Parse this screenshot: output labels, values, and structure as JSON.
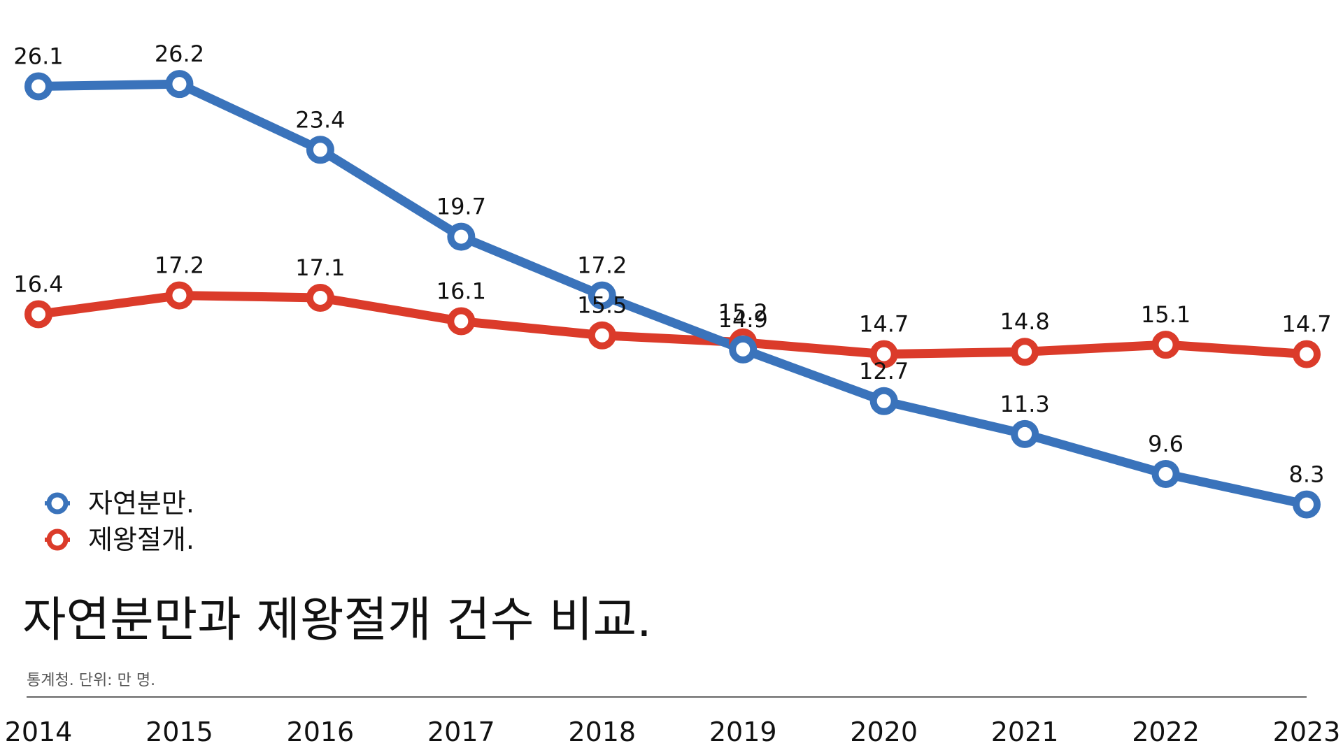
{
  "chart_data": {
    "type": "line",
    "title": "자연분만과 제왕절개 건수 비교.",
    "subtitle": "통계청. 단위: 만 명.",
    "categories": [
      "2014",
      "2015",
      "2016",
      "2017",
      "2018",
      "2019",
      "2020",
      "2021",
      "2022",
      "2023"
    ],
    "series": [
      {
        "name": "자연분만.",
        "color": "#3a73bb",
        "values": [
          26.1,
          26.2,
          23.4,
          19.7,
          17.2,
          14.9,
          12.7,
          11.3,
          9.6,
          8.3
        ]
      },
      {
        "name": "제왕절개.",
        "color": "#db3b2a",
        "values": [
          16.4,
          17.2,
          17.1,
          16.1,
          15.5,
          15.2,
          14.7,
          14.8,
          15.1,
          14.7
        ]
      }
    ],
    "ylim": [
      0,
      30
    ],
    "grid": false,
    "legend_position": "bottom-left",
    "value_labels": true
  }
}
